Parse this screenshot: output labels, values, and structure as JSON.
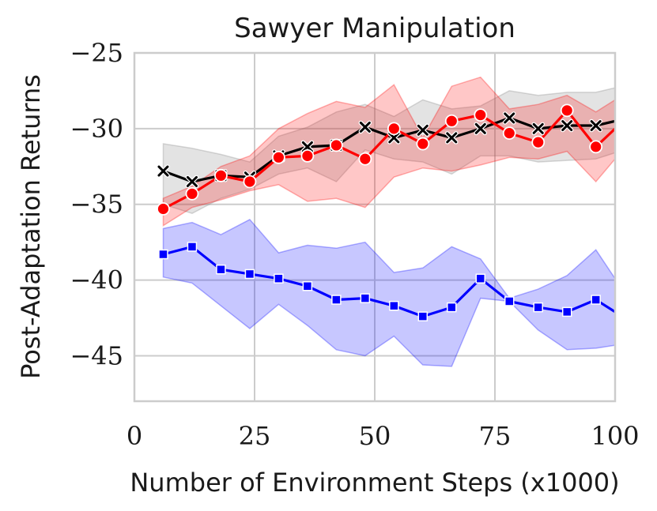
{
  "chart_data": {
    "type": "line",
    "title": "Sawyer Manipulation",
    "xlabel": "Number of Environment Steps (x1000)",
    "ylabel": "Post-Adaptation Returns",
    "xlim": [
      0,
      100
    ],
    "ylim": [
      -48,
      -25
    ],
    "xticks": [
      0,
      25,
      50,
      75,
      100
    ],
    "xtick_labels": [
      "0",
      "25",
      "50",
      "75",
      "100"
    ],
    "yticks": [
      -25,
      -30,
      -35,
      -40,
      -45
    ],
    "ytick_labels": [
      "−25",
      "−30",
      "−35",
      "−40",
      "−45"
    ],
    "grid": true,
    "x": [
      6,
      12,
      18,
      24,
      30,
      36,
      42,
      48,
      54,
      60,
      66,
      72,
      78,
      84,
      90,
      96,
      100
    ],
    "series": [
      {
        "name": "gray",
        "color": "#000000",
        "band_color": "#808080",
        "marker": "x",
        "values": [
          -32.8,
          -33.5,
          -33.1,
          -33.2,
          -31.8,
          -31.2,
          -31.1,
          -29.9,
          -30.6,
          -30.1,
          -30.6,
          -30.0,
          -29.3,
          -30.0,
          -29.8,
          -29.8,
          -29.5
        ],
        "lower": [
          -35.0,
          -35.6,
          -34.6,
          -34.0,
          -33.0,
          -32.6,
          -33.5,
          -31.4,
          -32.0,
          -32.2,
          -33.0,
          -31.8,
          -31.8,
          -32.2,
          -32.1,
          -32.0,
          -31.6
        ],
        "upper": [
          -31.0,
          -31.3,
          -31.7,
          -32.2,
          -30.5,
          -29.9,
          -28.9,
          -28.4,
          -29.2,
          -28.1,
          -28.7,
          -28.5,
          -27.5,
          -27.8,
          -27.6,
          -27.6,
          -27.3
        ]
      },
      {
        "name": "red",
        "color": "#ff0000",
        "band_color": "#ff0000",
        "marker": "o",
        "values": [
          -35.3,
          -34.3,
          -33.1,
          -33.5,
          -31.9,
          -31.8,
          -31.1,
          -32.0,
          -30.0,
          -31.0,
          -29.5,
          -29.1,
          -30.3,
          -30.9,
          -28.8,
          -31.2,
          -30.0
        ],
        "lower": [
          -36.4,
          -35.2,
          -34.7,
          -34.1,
          -33.7,
          -34.8,
          -34.6,
          -35.2,
          -33.2,
          -32.6,
          -32.8,
          -32.4,
          -31.9,
          -32.0,
          -31.5,
          -33.5,
          -32.0
        ],
        "upper": [
          -34.6,
          -33.8,
          -32.5,
          -31.8,
          -30.0,
          -29.0,
          -28.2,
          -28.6,
          -27.1,
          -30.6,
          -27.2,
          -26.6,
          -28.7,
          -28.4,
          -27.8,
          -28.9,
          -28.1
        ]
      },
      {
        "name": "blue",
        "color": "#0000ff",
        "band_color": "#0000ff",
        "marker": "s",
        "values": [
          -38.3,
          -37.8,
          -39.3,
          -39.6,
          -39.9,
          -40.4,
          -41.3,
          -41.2,
          -41.7,
          -42.4,
          -41.8,
          -39.9,
          -41.4,
          -41.8,
          -42.1,
          -41.3,
          -42.1
        ],
        "lower": [
          -39.8,
          -40.2,
          -41.7,
          -43.2,
          -41.6,
          -43.0,
          -44.6,
          -45.0,
          -43.7,
          -45.6,
          -45.7,
          -41.2,
          -41.4,
          -43.3,
          -44.6,
          -44.5,
          -44.3
        ],
        "upper": [
          -36.6,
          -36.2,
          -37.0,
          -36.0,
          -38.2,
          -37.7,
          -37.9,
          -37.5,
          -39.5,
          -39.2,
          -37.8,
          -38.6,
          -41.2,
          -40.6,
          -39.7,
          -38.0,
          -39.9
        ]
      }
    ]
  }
}
